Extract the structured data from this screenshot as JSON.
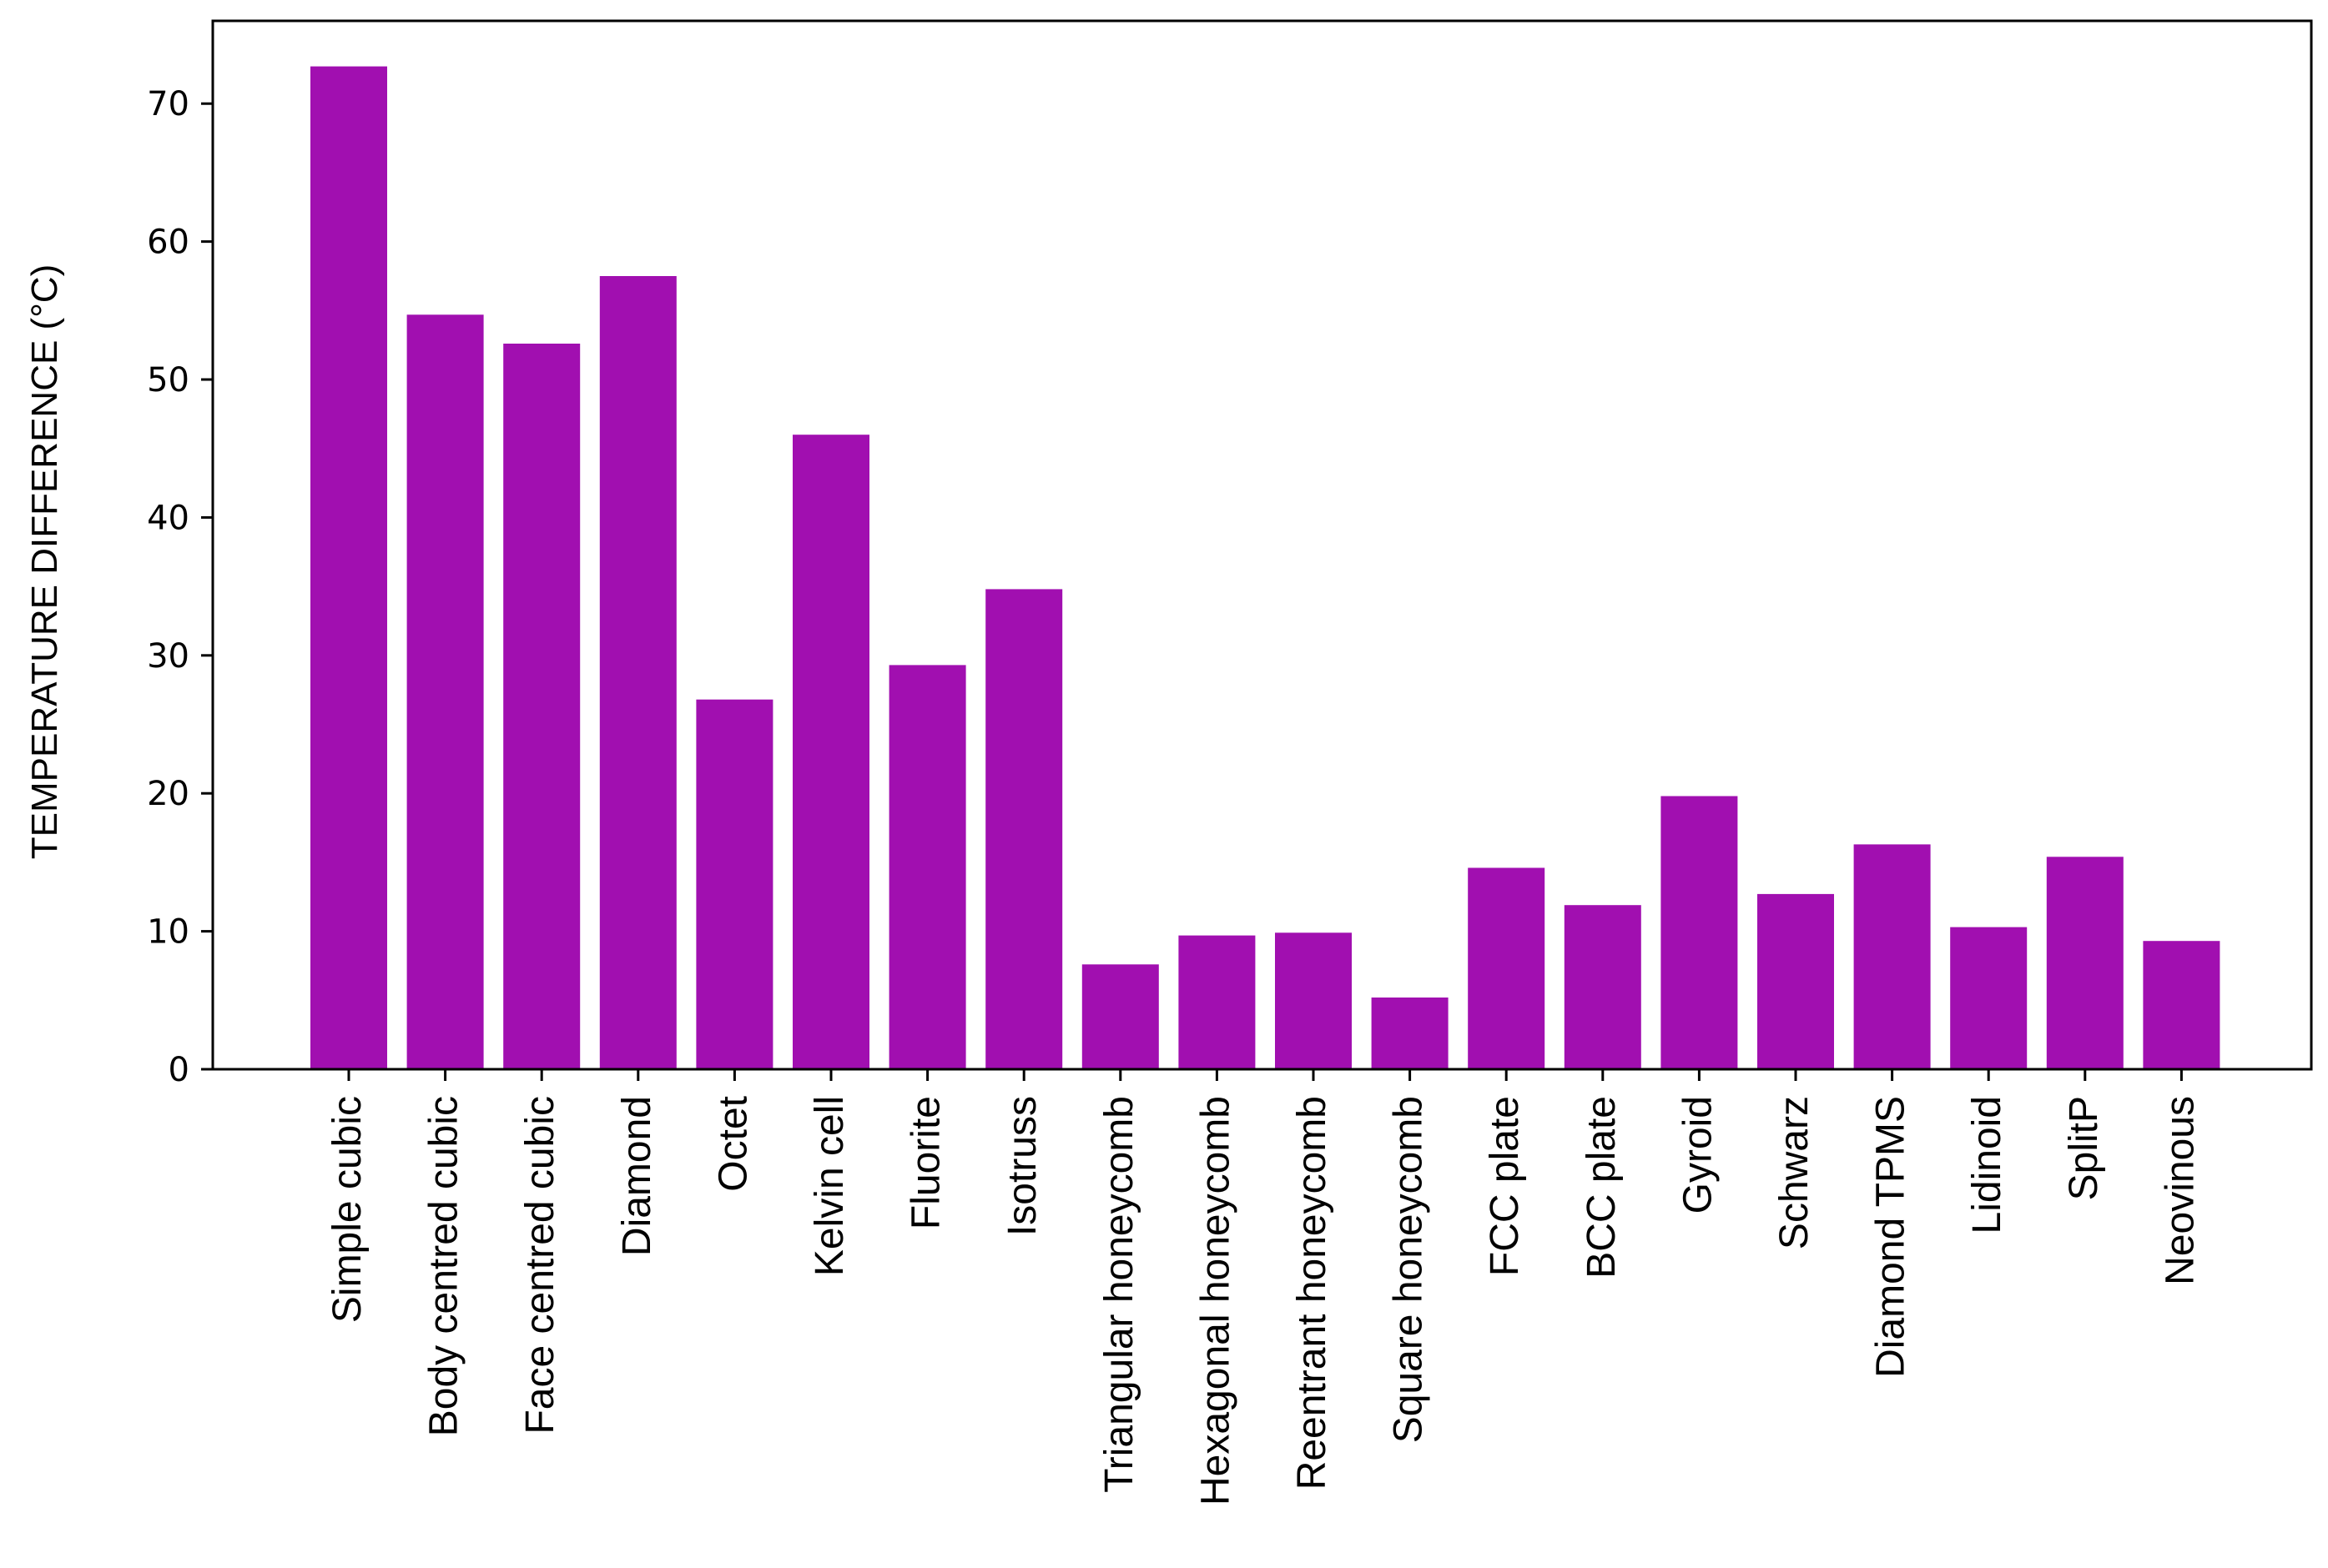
{
  "chart_data": {
    "type": "bar",
    "title": "",
    "xlabel": "",
    "ylabel": "TEMPERATURE DIFFERENCE (°C)",
    "ylim": [
      0,
      76
    ],
    "yticks": [
      0,
      10,
      20,
      30,
      40,
      50,
      60,
      70
    ],
    "grid": false,
    "bar_color": "#a10fb0",
    "categories": [
      "Simple cubic",
      "Body centred cubic",
      "Face centred cubic",
      "Diamond",
      "Octet",
      "Kelvin cell",
      "Fluorite",
      "Isotruss",
      "Triangular  honeycomb",
      "Hexagonal honeycomb",
      "Reentrant honeycomb",
      "Square honeycomb",
      "FCC plate",
      "BCC plate",
      "Gyroid",
      "Schwarz",
      "Diamond TPMS",
      "Lidinoid",
      "SplitP",
      "Neovinous"
    ],
    "values": [
      72.7,
      54.7,
      52.6,
      57.5,
      26.8,
      46.0,
      29.3,
      34.8,
      7.6,
      9.7,
      9.9,
      5.2,
      14.6,
      11.9,
      19.8,
      12.7,
      16.3,
      10.3,
      15.4,
      9.3
    ]
  }
}
